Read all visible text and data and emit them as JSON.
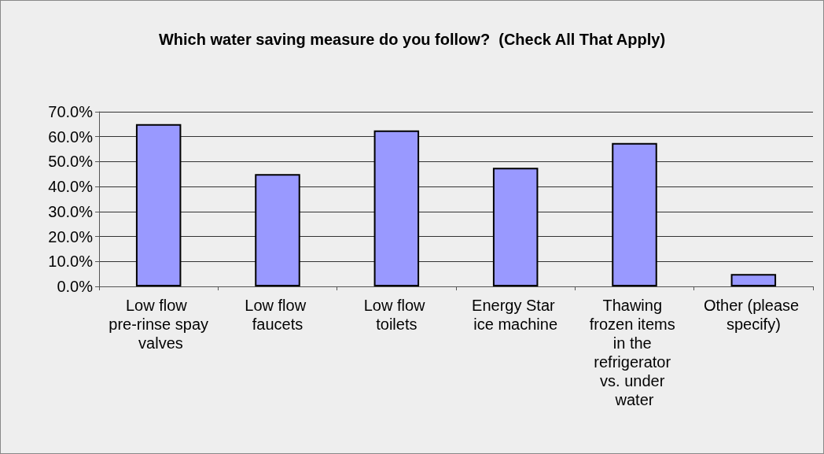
{
  "chart_data": {
    "type": "bar",
    "title": "Which water saving measure do you follow?  (Check All That Apply)",
    "categories": [
      "Low flow pre-rinse spay valves",
      "Low flow faucets",
      "Low flow toilets",
      "Energy Star ice machine",
      "Thawing frozen items in the refrigerator vs. under water",
      "Other (please specify)"
    ],
    "values": [
      65.0,
      45.0,
      62.5,
      47.5,
      57.5,
      5.0
    ],
    "color": "#9999ff",
    "ylim": [
      0,
      70
    ],
    "yticks": [
      {
        "value": 0,
        "label": "0.0%"
      },
      {
        "value": 10,
        "label": "10.0%"
      },
      {
        "value": 20,
        "label": "20.0%"
      },
      {
        "value": 30,
        "label": "30.0%"
      },
      {
        "value": 40,
        "label": "40.0%"
      },
      {
        "value": 50,
        "label": "50.0%"
      },
      {
        "value": 60,
        "label": "60.0%"
      },
      {
        "value": 70,
        "label": "70.0%"
      }
    ],
    "grid": "y"
  }
}
